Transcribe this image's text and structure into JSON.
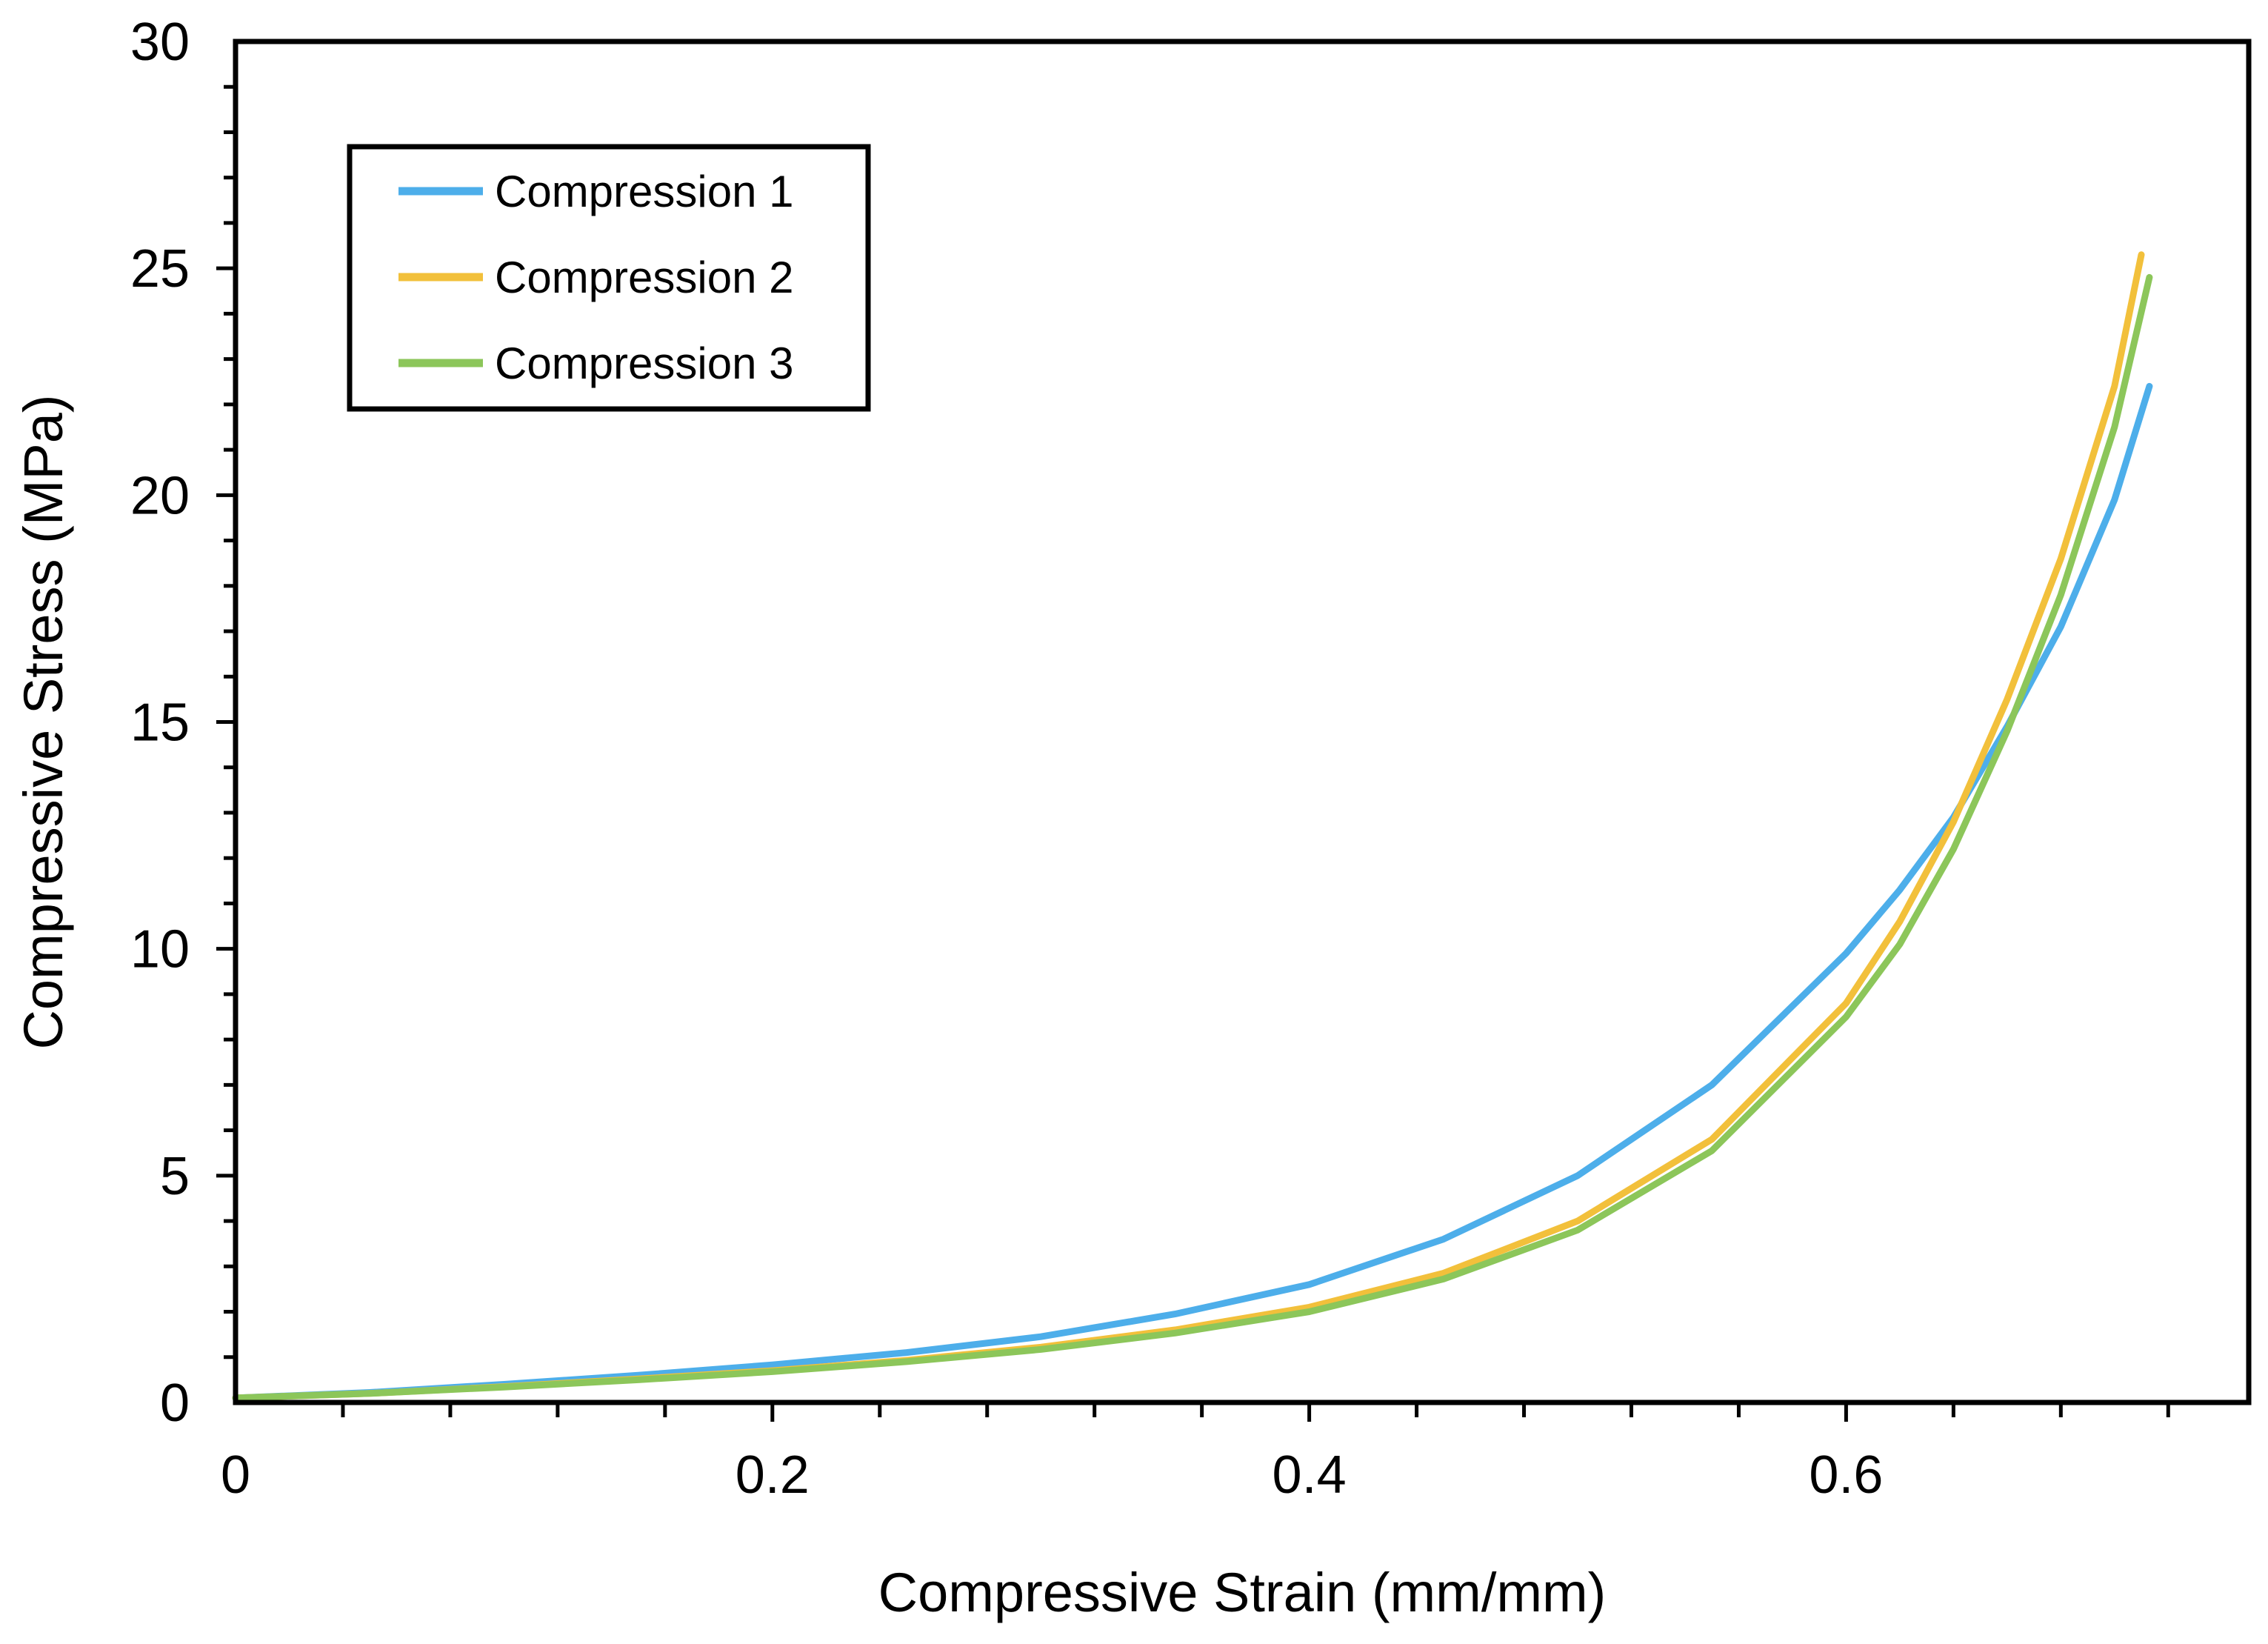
{
  "chart_data": {
    "type": "line",
    "title": "",
    "xlabel": "Compressive Strain (mm/mm)",
    "ylabel": "Compressive Stress (MPa)",
    "xlim": [
      0,
      0.75
    ],
    "ylim": [
      0,
      30
    ],
    "x_ticks": [
      0,
      0.2,
      0.4,
      0.6
    ],
    "x_tick_labels": [
      "0",
      "0.2",
      "0.4",
      "0.6"
    ],
    "x_minor_step": 0.04,
    "y_ticks": [
      0,
      5,
      10,
      15,
      20,
      25,
      30
    ],
    "y_tick_labels": [
      "0",
      "5",
      "10",
      "15",
      "20",
      "25",
      "30"
    ],
    "y_minor_step": 1,
    "grid": false,
    "legend_position": "top-left",
    "series": [
      {
        "name": "Compression 1",
        "color": "#4DAEEA",
        "x": [
          0,
          0.05,
          0.1,
          0.15,
          0.2,
          0.25,
          0.3,
          0.35,
          0.4,
          0.45,
          0.5,
          0.55,
          0.6,
          0.62,
          0.64,
          0.66,
          0.68,
          0.7,
          0.713
        ],
        "y": [
          0.1,
          0.22,
          0.4,
          0.6,
          0.83,
          1.1,
          1.45,
          1.95,
          2.6,
          3.6,
          5.0,
          7.0,
          9.9,
          11.3,
          12.9,
          14.9,
          17.1,
          19.9,
          22.4
        ]
      },
      {
        "name": "Compression 2",
        "color": "#F2C03B",
        "x": [
          0,
          0.05,
          0.1,
          0.15,
          0.2,
          0.25,
          0.3,
          0.35,
          0.4,
          0.45,
          0.5,
          0.55,
          0.6,
          0.62,
          0.64,
          0.66,
          0.68,
          0.7,
          0.71
        ],
        "y": [
          0.1,
          0.2,
          0.35,
          0.52,
          0.7,
          0.93,
          1.22,
          1.6,
          2.1,
          2.85,
          4.0,
          5.8,
          8.8,
          10.6,
          12.8,
          15.5,
          18.6,
          22.4,
          25.3
        ]
      },
      {
        "name": "Compression 3",
        "color": "#8CC65A",
        "x": [
          0,
          0.05,
          0.1,
          0.15,
          0.2,
          0.25,
          0.3,
          0.35,
          0.4,
          0.45,
          0.5,
          0.55,
          0.6,
          0.62,
          0.64,
          0.66,
          0.68,
          0.7,
          0.713
        ],
        "y": [
          0.1,
          0.2,
          0.34,
          0.5,
          0.68,
          0.9,
          1.17,
          1.53,
          2.0,
          2.72,
          3.8,
          5.55,
          8.5,
          10.1,
          12.2,
          14.8,
          17.8,
          21.5,
          24.8
        ]
      }
    ]
  }
}
